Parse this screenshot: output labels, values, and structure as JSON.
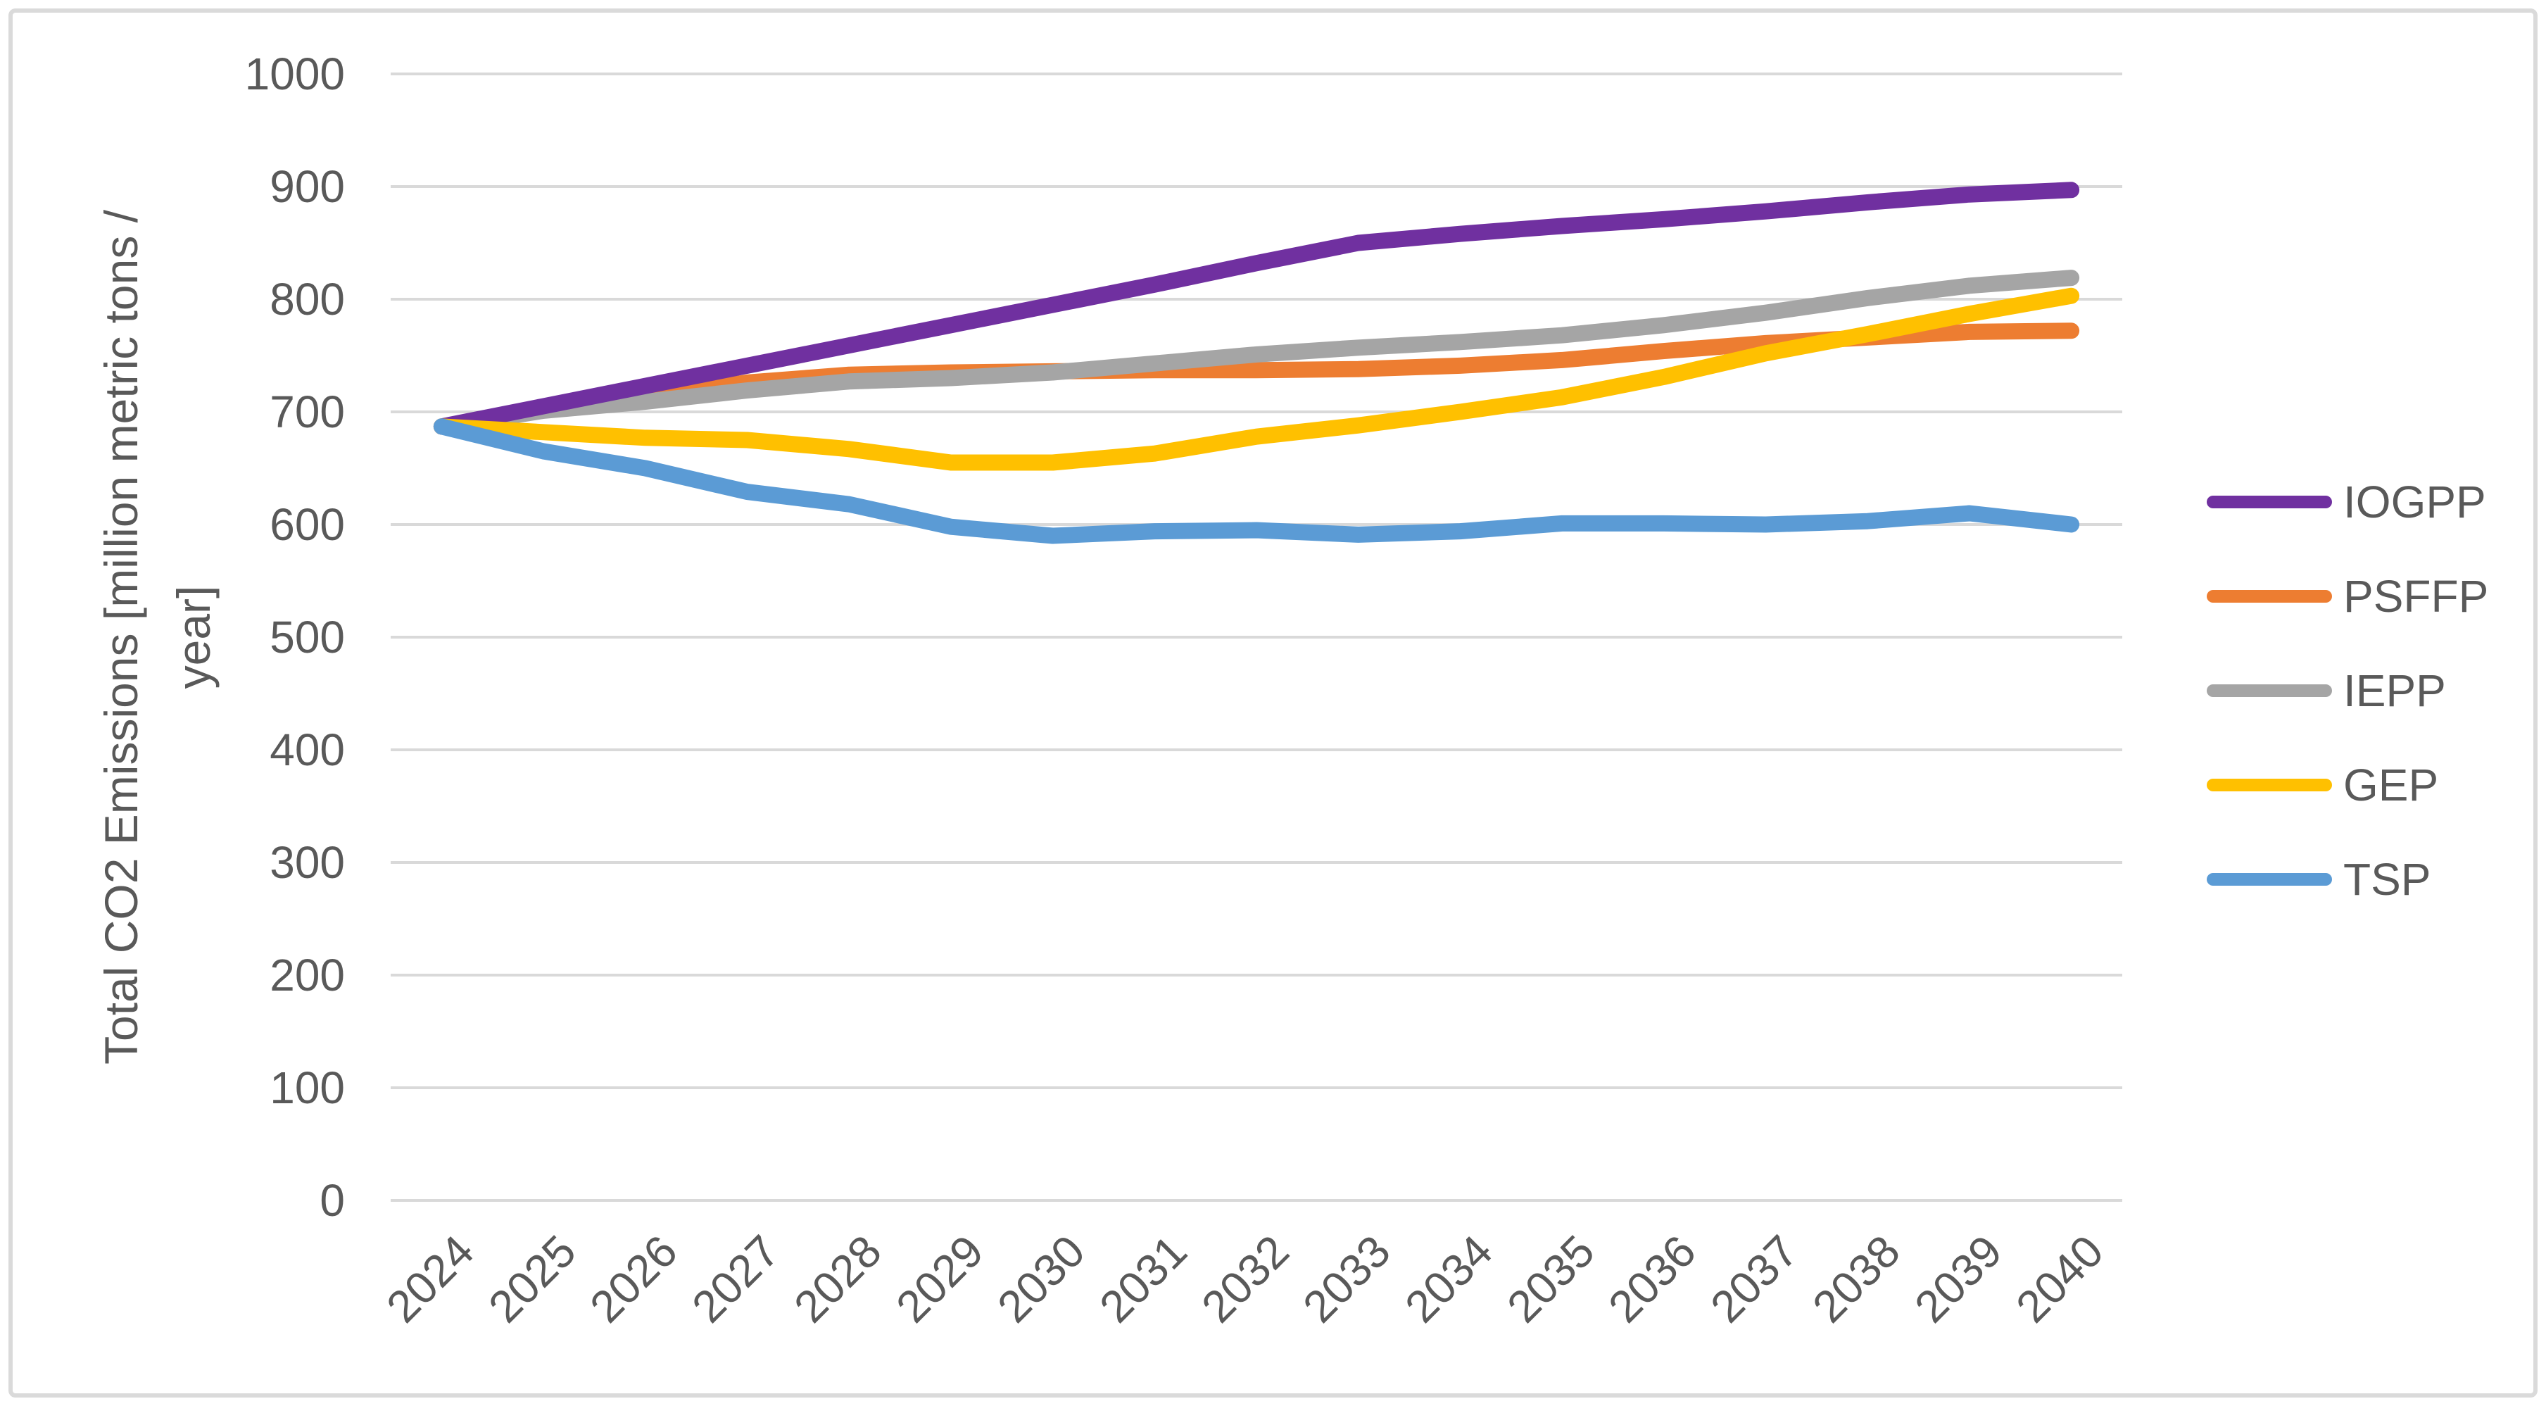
{
  "figure": {
    "background_color": "#FFFFFF",
    "border_color": "#DADADA"
  },
  "chart_data": {
    "type": "line",
    "title": "",
    "xlabel": "",
    "ylabel": "Total CO2 Emissions [million metric tons / year]",
    "ylabel_line1": "Total CO2 Emissions [million metric tons /",
    "ylabel_line2": "year]",
    "ylim": [
      0,
      1000
    ],
    "ytick_step": 100,
    "ytick_labels": [
      "0",
      "100",
      "200",
      "300",
      "400",
      "500",
      "600",
      "700",
      "800",
      "900",
      "1000"
    ],
    "grid": true,
    "grid_color": "#D9D9D9",
    "text_color": "#595959",
    "line_width": 23,
    "legend_position": "right",
    "categories": [
      "2024",
      "2025",
      "2026",
      "2027",
      "2028",
      "2029",
      "2030",
      "2031",
      "2032",
      "2033",
      "2034",
      "2035",
      "2036",
      "2037",
      "2038",
      "2039",
      "2040"
    ],
    "series": [
      {
        "name": "IOGPP",
        "color": "#7030A0",
        "values": [
          687,
          705,
          723,
          741,
          759,
          777,
          795,
          813,
          832,
          850,
          858,
          865,
          871,
          878,
          886,
          893,
          897
        ]
      },
      {
        "name": "PSFFP",
        "color": "#ED7D31",
        "values": [
          687,
          703,
          714,
          726,
          733,
          735,
          736,
          737,
          737,
          738,
          741,
          746,
          754,
          761,
          766,
          771,
          772
        ]
      },
      {
        "name": "IEPP",
        "color": "#A5A5A5",
        "values": [
          687,
          701,
          709,
          719,
          727,
          730,
          735,
          743,
          751,
          757,
          762,
          768,
          777,
          788,
          801,
          812,
          819
        ]
      },
      {
        "name": "GEP",
        "color": "#FFC000",
        "values": [
          687,
          682,
          677,
          675,
          667,
          655,
          655,
          663,
          678,
          688,
          700,
          713,
          731,
          752,
          769,
          787,
          803
        ]
      },
      {
        "name": "TSP",
        "color": "#5B9BD5",
        "values": [
          687,
          665,
          650,
          629,
          618,
          598,
          590,
          594,
          595,
          591,
          594,
          601,
          601,
          600,
          603,
          610,
          600
        ]
      }
    ]
  }
}
